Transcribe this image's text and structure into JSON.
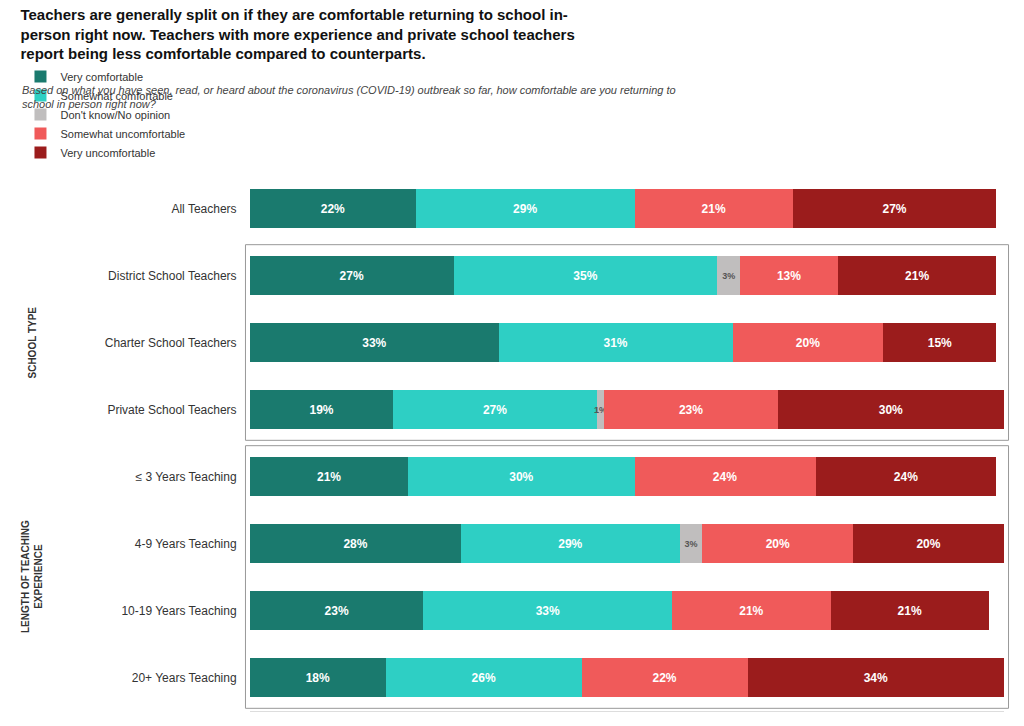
{
  "chart_data": {
    "type": "bar",
    "orientation": "horizontal",
    "stacked": true,
    "title": "Teachers are generally split on if they are comfortable returning to school in-\nperson right now. Teachers with more experience and private school teachers\nreport being less comfortable compared to counterparts.",
    "subtitle": "Based on what you have seen, read, or heard about the coronavirus (COVID-19) outbreak so far, how comfortable are you returning to\nschool in person right now?",
    "categories": [
      "All Teachers",
      "District School Teachers",
      "Charter School Teachers",
      "Private School Teachers",
      "≤ 3 Years Teaching",
      "4-9 Years Teaching",
      "10-19 Years Teaching",
      "20+ Years Teaching"
    ],
    "series": [
      {
        "name": "Very comfortable",
        "color": "#1a7a6e",
        "values": [
          22,
          27,
          33,
          19,
          21,
          28,
          23,
          18
        ],
        "value_labels": [
          "22%",
          "27%",
          "33%",
          "19%",
          "21%",
          "28%",
          "23%",
          "18%"
        ]
      },
      {
        "name": "Somewhat comfortable",
        "color": "#2ecfc4",
        "values": [
          29,
          35,
          31,
          27,
          30,
          29,
          33,
          26
        ],
        "value_labels": [
          "29%",
          "35%",
          "31%",
          "27%",
          "30%",
          "29%",
          "33%",
          "26%"
        ]
      },
      {
        "name": "Don't know/No opinion",
        "color": "#c0bebe",
        "values": [
          0,
          3,
          0,
          1,
          0,
          3,
          0,
          0
        ],
        "value_labels": [
          null,
          "3%",
          null,
          "1%",
          null,
          "3%",
          null,
          null
        ]
      },
      {
        "name": "Somewhat uncomfortable",
        "color": "#f05a5a",
        "values": [
          21,
          13,
          20,
          23,
          24,
          20,
          21,
          22
        ],
        "value_labels": [
          "21%",
          "13%",
          "20%",
          "23%",
          "24%",
          "20%",
          "21%",
          "22%"
        ]
      },
      {
        "name": "Very uncomfortable",
        "color": "#9b1c1c",
        "values": [
          27,
          21,
          15,
          30,
          24,
          20,
          21,
          34
        ],
        "value_labels": [
          "27%",
          "21%",
          "15%",
          "30%",
          "24%",
          "20%",
          "21%",
          "34%"
        ]
      }
    ],
    "xlim": [
      0,
      100
    ],
    "tick_labels": "y",
    "grid": false,
    "data_labels": true,
    "legend": "top",
    "annotations": [
      {
        "text": "SCHOOL TYPE",
        "categories": [
          "District School Teachers",
          "Charter School Teachers",
          "Private School Teachers"
        ]
      },
      {
        "text": "LENGTH OF TEACHING\nEXPERIENCE",
        "categories": [
          "≤ 3 Years Teaching",
          "4-9 Years Teaching",
          "10-19 Years Teaching",
          "20+ Years Teaching"
        ]
      }
    ]
  }
}
